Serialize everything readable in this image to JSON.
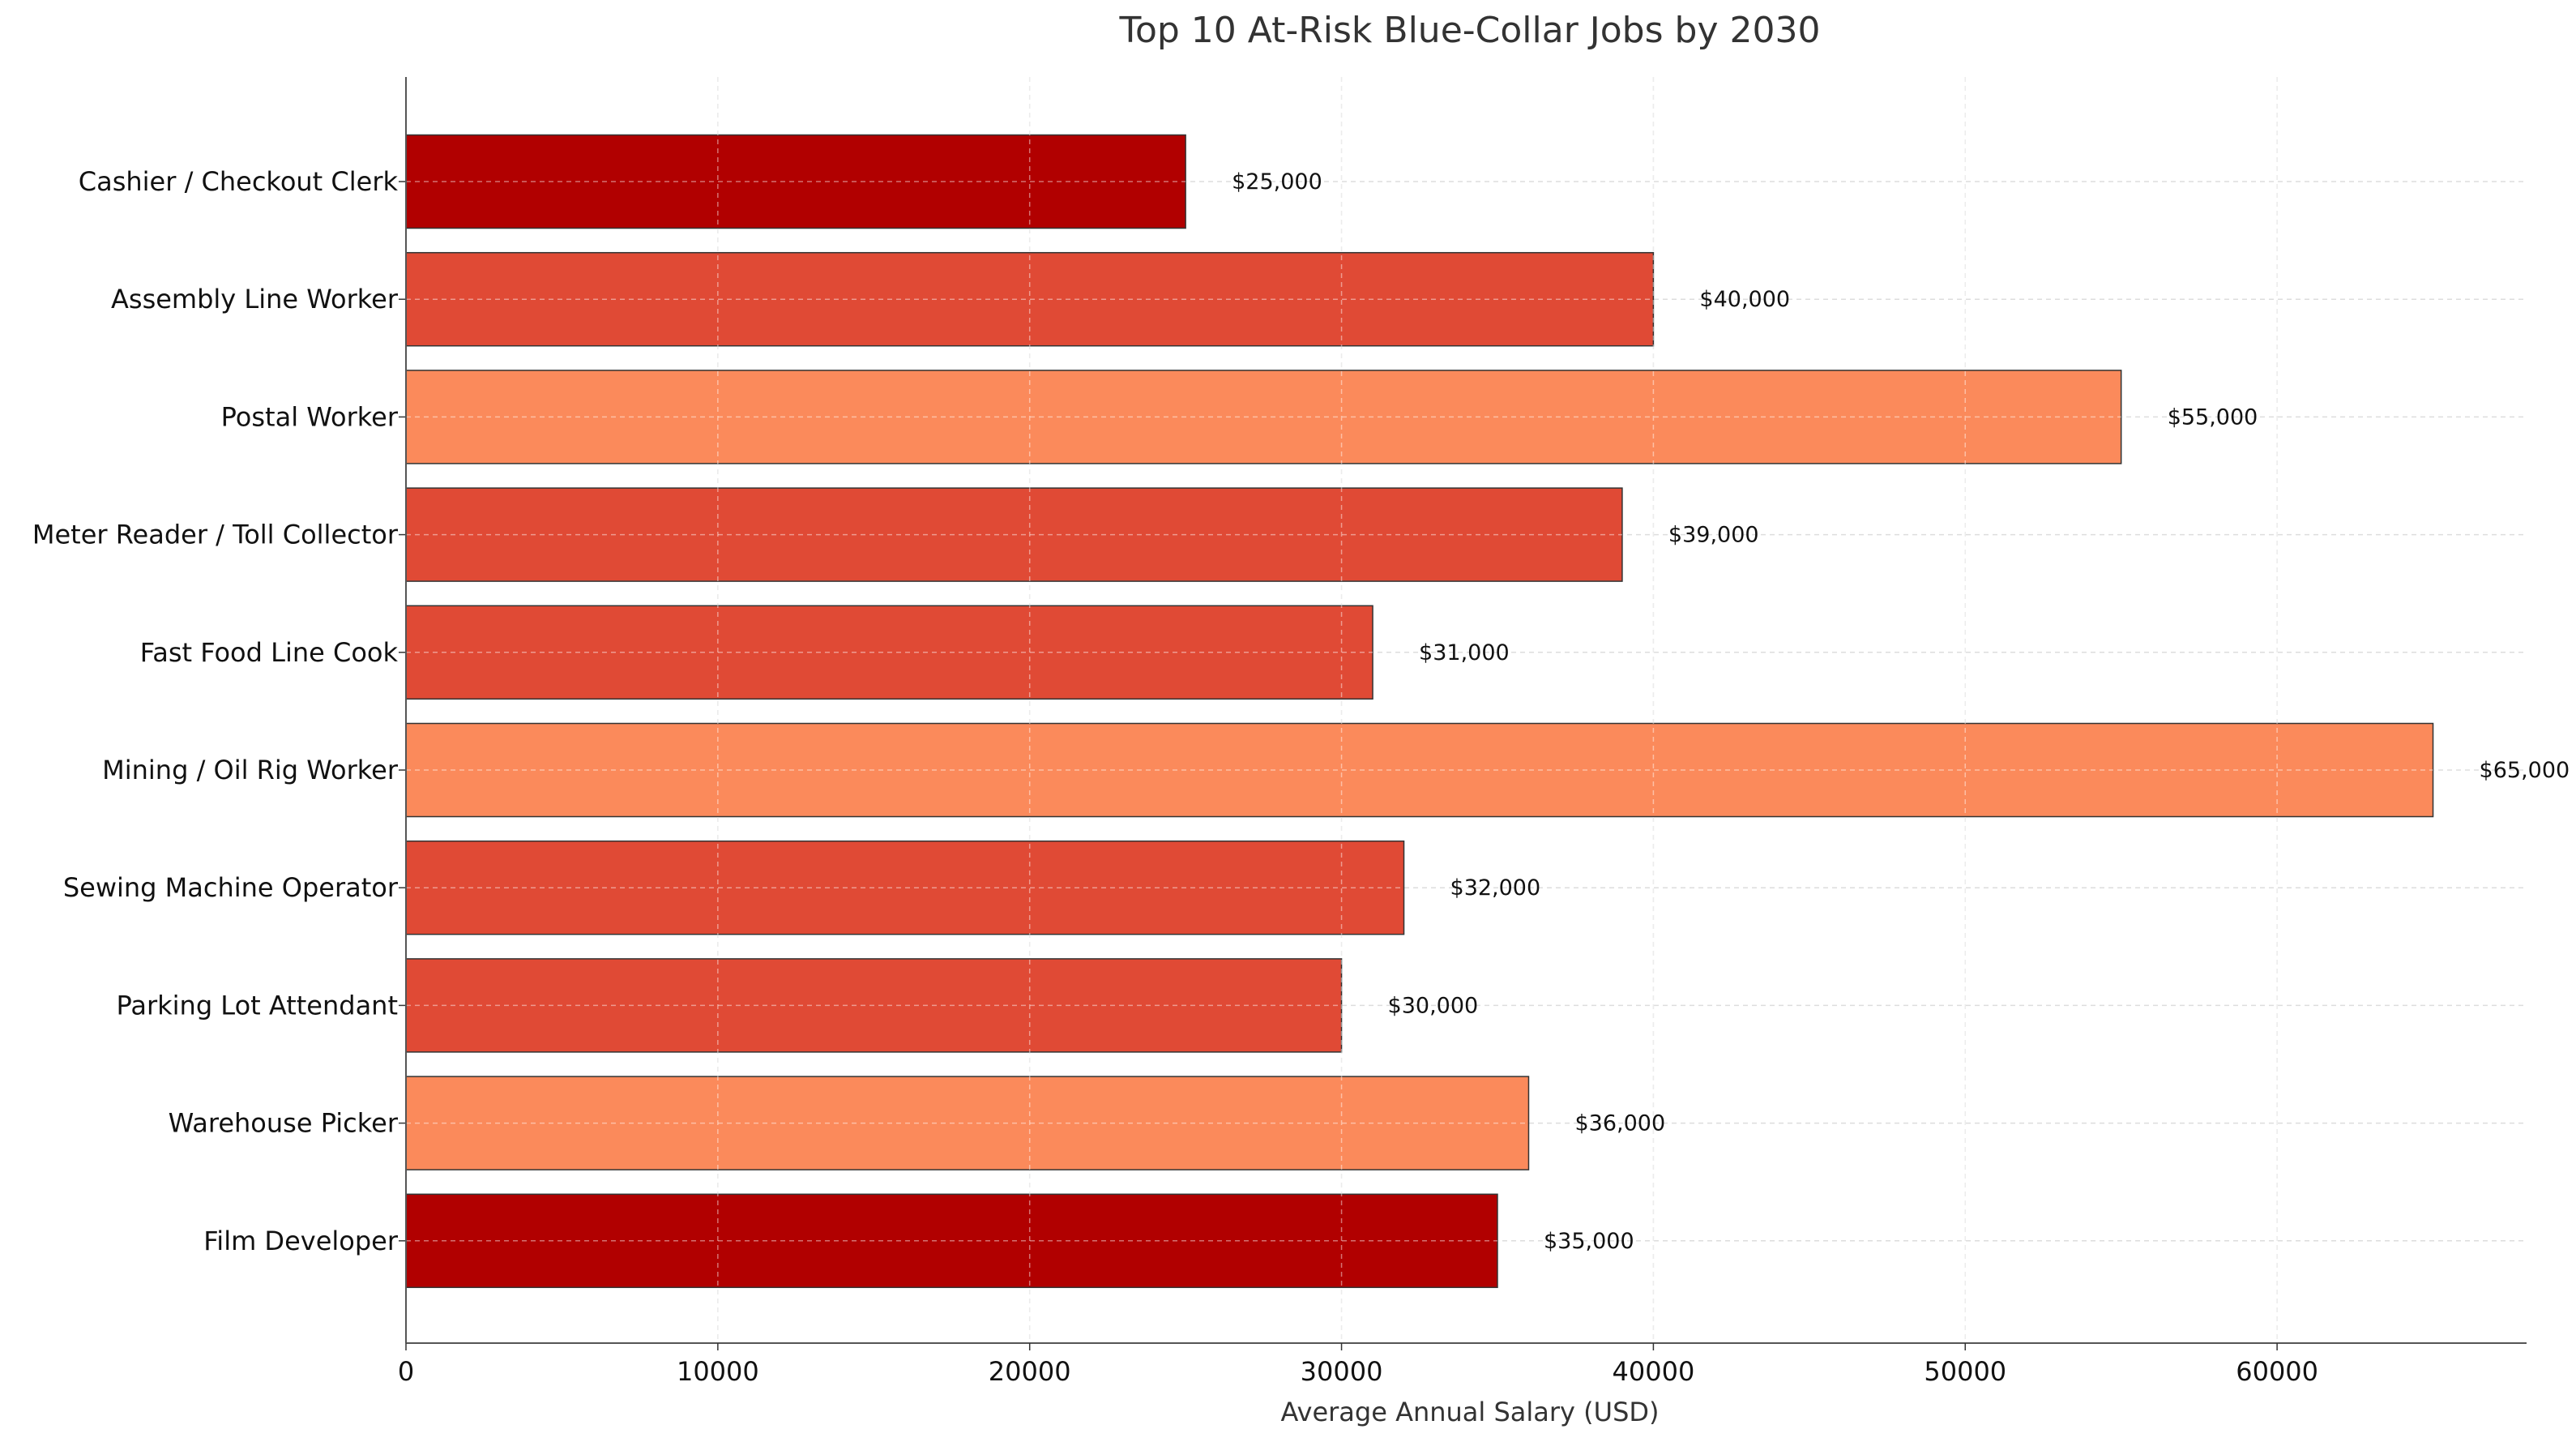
{
  "chart_data": {
    "type": "bar",
    "orientation": "horizontal",
    "title": "Top 10 At-Risk Blue-Collar Jobs by 2030",
    "xlabel": "Average Annual Salary (USD)",
    "ylabel": "",
    "xlim": [
      0,
      68000
    ],
    "xticks": [
      0,
      10000,
      20000,
      30000,
      40000,
      50000,
      60000
    ],
    "grid": true,
    "legend": "none",
    "categories": [
      "Cashier / Checkout Clerk",
      "Assembly Line Worker",
      "Postal Worker",
      "Meter Reader / Toll Collector",
      "Fast Food Line Cook",
      "Mining / Oil Rig Worker",
      "Sewing Machine Operator",
      "Parking Lot Attendant",
      "Warehouse Picker",
      "Film Developer"
    ],
    "values": [
      25000,
      40000,
      55000,
      39000,
      31000,
      65000,
      32000,
      30000,
      36000,
      35000
    ],
    "value_labels": [
      "$25,000",
      "$40,000",
      "$55,000",
      "$39,000",
      "$31,000",
      "$65,000",
      "$32,000",
      "$30,000",
      "$36,000",
      "$35,000"
    ],
    "bar_colors": [
      "#b10000",
      "#e04a35",
      "#fb8a5b",
      "#e04a35",
      "#e04a35",
      "#fb8a5b",
      "#e04a35",
      "#e04a35",
      "#fb8a5b",
      "#b10000"
    ],
    "edge_color": "#333333"
  }
}
